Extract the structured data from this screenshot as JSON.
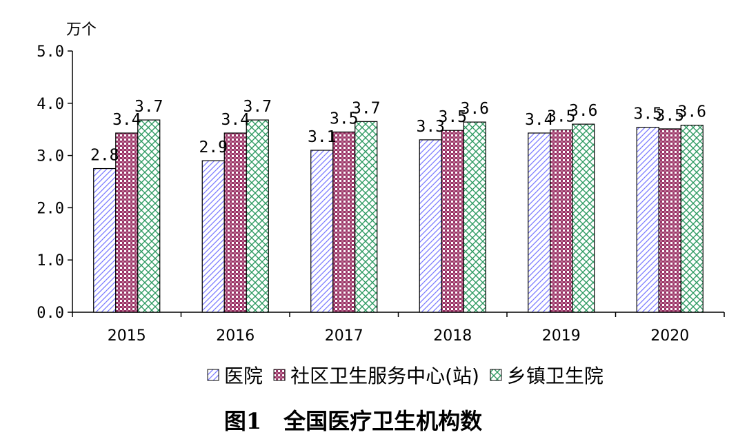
{
  "chart_data": {
    "type": "bar",
    "title": "图1　全国医疗卫生机构数",
    "unit": "万个",
    "categories": [
      "2015",
      "2016",
      "2017",
      "2018",
      "2019",
      "2020"
    ],
    "ylim": [
      0,
      5
    ],
    "yticks": [
      "0.0",
      "1.0",
      "2.0",
      "3.0",
      "4.0",
      "5.0"
    ],
    "grid": false,
    "legend_position": "bottom",
    "series": [
      {
        "name": "医院",
        "values": [
          2.75,
          2.9,
          3.1,
          3.3,
          3.43,
          3.54
        ],
        "labels": [
          "2.8",
          "2.9",
          "3.1",
          "3.3",
          "3.4",
          "3.5"
        ],
        "color": "#9999ff",
        "pattern": "diagonal-lines"
      },
      {
        "name": "社区卫生服务中心(站)",
        "values": [
          3.43,
          3.43,
          3.45,
          3.48,
          3.49,
          3.51
        ],
        "labels": [
          "3.4",
          "3.4",
          "3.5",
          "3.5",
          "3.5",
          "3.5"
        ],
        "color": "#993366",
        "pattern": "checker"
      },
      {
        "name": "乡镇卫生院",
        "values": [
          3.68,
          3.68,
          3.65,
          3.64,
          3.6,
          3.58
        ],
        "labels": [
          "3.7",
          "3.7",
          "3.7",
          "3.6",
          "3.6",
          "3.6"
        ],
        "color": "#339966",
        "pattern": "lattice"
      }
    ]
  }
}
